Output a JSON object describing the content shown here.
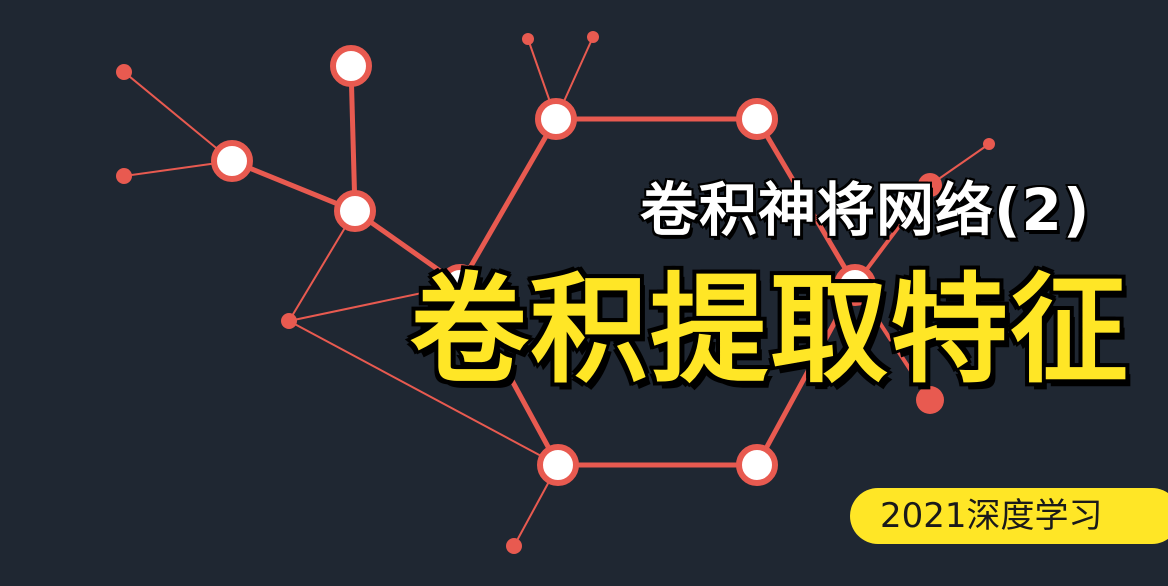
{
  "subtitle": "卷积神将网络(2)",
  "title": "卷积提取特征",
  "badge": "2021深度学习",
  "colors": {
    "background": "#1f2732",
    "network": "#e85a50",
    "title": "#ffe626",
    "subtitle": "#ffffff",
    "badge_bg": "#ffe626"
  }
}
